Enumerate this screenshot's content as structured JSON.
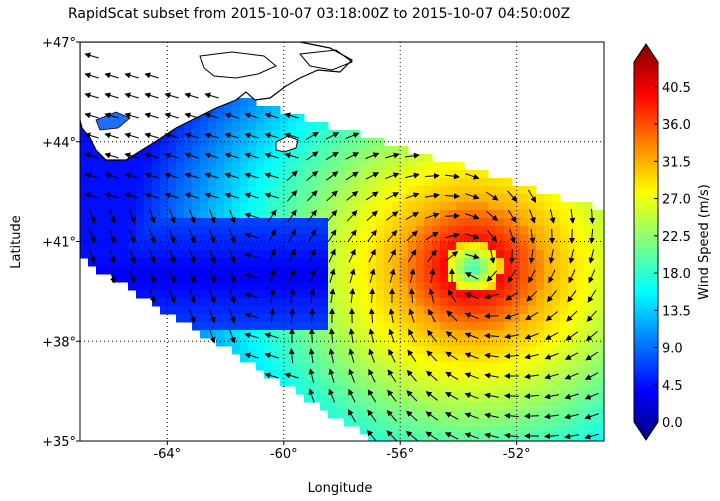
{
  "title": "RapidScat subset from 2015-10-07 03:18:00Z to 2015-10-07 04:50:00Z",
  "map": {
    "xlabel": "Longitude",
    "ylabel": "Latitude",
    "lon_range": [
      -67,
      -49
    ],
    "lat_range": [
      35,
      47
    ],
    "lon_ticks": [
      {
        "value": -64,
        "label": "-64°"
      },
      {
        "value": -60,
        "label": "-60°"
      },
      {
        "value": -56,
        "label": "-56°"
      },
      {
        "value": -52,
        "label": "-52°"
      }
    ],
    "lat_ticks": [
      {
        "value": 47,
        "label": "+47°"
      },
      {
        "value": 44,
        "label": "+44°"
      },
      {
        "value": 41,
        "label": "+41°"
      },
      {
        "value": 38,
        "label": "+38°"
      },
      {
        "value": 35,
        "label": "+35°"
      }
    ],
    "grid": "dotted",
    "storm_center": {
      "lon": -53.5,
      "lat": 40.2
    }
  },
  "colorbar": {
    "label": "Wind Speed (m/s)",
    "min": 0.0,
    "max": 43.5,
    "ticks": [
      "0.0",
      "4.5",
      "9.0",
      "13.5",
      "18.0",
      "22.5",
      "27.0",
      "31.5",
      "36.0",
      "40.5"
    ],
    "colors": [
      "#00007f",
      "#0000ff",
      "#007fff",
      "#00ffff",
      "#7fff7f",
      "#ffff00",
      "#ff7f00",
      "#ff0000",
      "#7f0000"
    ]
  }
}
